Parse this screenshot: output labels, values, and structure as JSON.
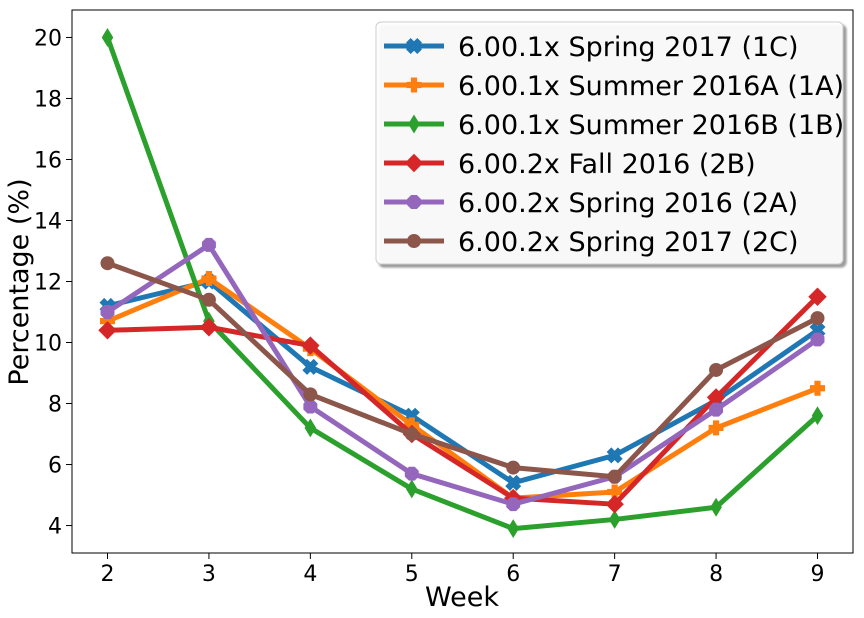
{
  "chart_data": {
    "type": "line",
    "xlabel": "Week",
    "ylabel": "Percentage (%)",
    "x": [
      2,
      3,
      4,
      5,
      6,
      7,
      8,
      9
    ],
    "xlim": [
      1.65,
      9.35
    ],
    "ylim": [
      3.1,
      20.9
    ],
    "xticks": [
      2,
      3,
      4,
      5,
      6,
      7,
      8,
      9
    ],
    "yticks": [
      4,
      6,
      8,
      10,
      12,
      14,
      16,
      18,
      20
    ],
    "grid": false,
    "legend_position": "top-right",
    "series": [
      {
        "name": "6.00.1x Spring 2017 (1C)",
        "color": "#1f77b4",
        "marker": "x-filled",
        "values": [
          11.2,
          12.0,
          9.2,
          7.6,
          5.4,
          6.3,
          8.1,
          10.4
        ]
      },
      {
        "name": "6.00.1x Summer 2016A (1A)",
        "color": "#ff7f0e",
        "marker": "plus-filled",
        "values": [
          10.7,
          12.1,
          9.8,
          7.3,
          4.9,
          5.1,
          7.2,
          8.5
        ]
      },
      {
        "name": "6.00.1x Summer 2016B (1B)",
        "color": "#2ca02c",
        "marker": "thin-diamond",
        "values": [
          20.0,
          10.7,
          7.2,
          5.2,
          3.9,
          4.2,
          4.6,
          7.6
        ]
      },
      {
        "name": "6.00.2x Fall 2016 (2B)",
        "color": "#d62728",
        "marker": "diamond",
        "values": [
          10.4,
          10.5,
          9.9,
          7.0,
          4.9,
          4.7,
          8.2,
          11.5
        ]
      },
      {
        "name": "6.00.2x Spring 2016 (2A)",
        "color": "#9467bd",
        "marker": "octagon",
        "values": [
          11.0,
          13.2,
          7.9,
          5.7,
          4.7,
          5.6,
          7.8,
          10.1
        ]
      },
      {
        "name": "6.00.2x Spring 2017 (2C)",
        "color": "#8c564b",
        "marker": "circle",
        "values": [
          12.6,
          11.4,
          8.3,
          7.0,
          5.9,
          5.6,
          9.1,
          10.8
        ]
      }
    ]
  }
}
